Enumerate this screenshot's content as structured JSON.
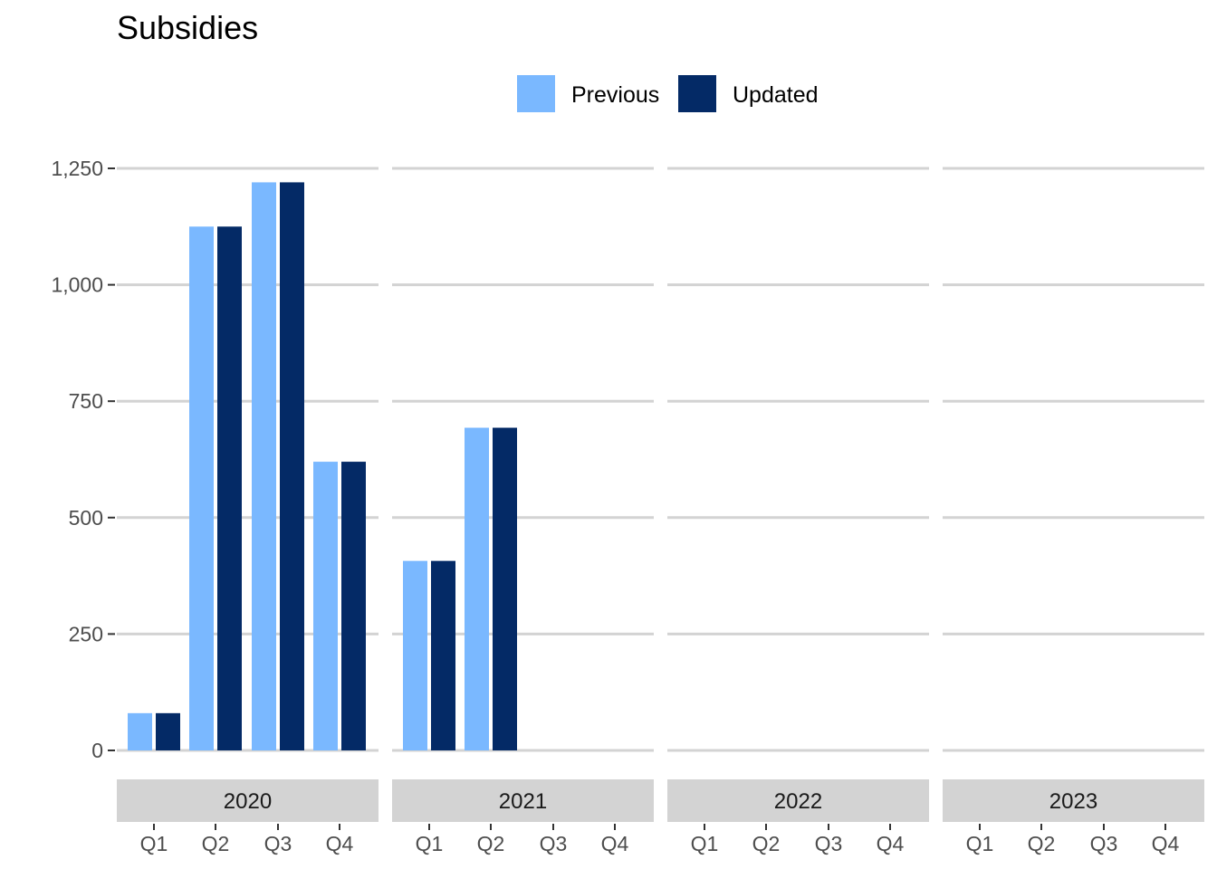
{
  "chart_data": {
    "type": "bar",
    "title": "Subsidies",
    "xlabel": "",
    "ylabel": "",
    "ylim": [
      0,
      1250
    ],
    "yticks": [
      0,
      250,
      500,
      750,
      1000,
      1250
    ],
    "ytick_labels": [
      "0",
      "250",
      "500",
      "750",
      "1,000",
      "1,250"
    ],
    "grid": "horizontal",
    "legend_position": "top",
    "facets": [
      "2020",
      "2021",
      "2022",
      "2023"
    ],
    "categories": [
      "Q1",
      "Q2",
      "Q3",
      "Q4"
    ],
    "series": [
      {
        "name": "Previous",
        "color": "#7ab8ff",
        "values": [
          [
            80,
            1125,
            1220,
            620
          ],
          [
            407,
            693,
            null,
            null
          ],
          [
            null,
            null,
            null,
            null
          ],
          [
            null,
            null,
            null,
            null
          ]
        ]
      },
      {
        "name": "Updated",
        "color": "#042a66",
        "values": [
          [
            80,
            1125,
            1220,
            620
          ],
          [
            407,
            693,
            null,
            null
          ],
          [
            null,
            null,
            null,
            null
          ],
          [
            null,
            null,
            null,
            null
          ]
        ]
      }
    ]
  }
}
